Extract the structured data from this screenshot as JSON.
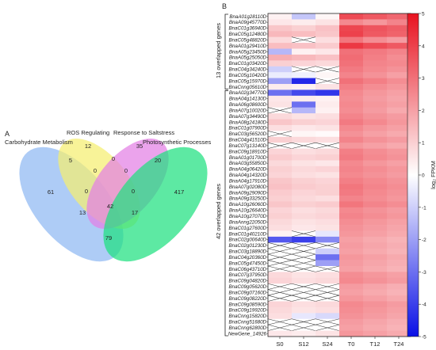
{
  "panel_a": {
    "letter": "A",
    "sets": [
      {
        "name": "Carbohydrate Metabolism",
        "color": "#8fb8f2"
      },
      {
        "name": "ROS Regulating",
        "color": "#f5ee70"
      },
      {
        "name": "Response to Saltstress",
        "color": "#e37fe5"
      },
      {
        "name": "Photosynthetic Processes",
        "color": "#1ee07f"
      }
    ]
  },
  "panel_b": {
    "letter": "B",
    "group_labels": [
      "13 overlapped genes",
      "42 overlapped genes"
    ],
    "colorbar": {
      "label": "log₂ FPKM",
      "ticks": [
        "5",
        "4",
        "3",
        "2",
        "1",
        "0",
        "-1",
        "-2",
        "-3",
        "-4",
        "-5"
      ],
      "high_color": "#e8121f",
      "mid_color": "#ffffff",
      "low_color": "#0a10e6"
    }
  },
  "chart_data": [
    {
      "type": "venn",
      "sets": [
        "Carbohydrate Metabolism",
        "ROS Regulating",
        "Response to Saltstress",
        "Photosynthetic Processes"
      ],
      "regions": [
        {
          "sets": [
            "Carbohydrate Metabolism"
          ],
          "value": 61
        },
        {
          "sets": [
            "ROS Regulating"
          ],
          "value": 12
        },
        {
          "sets": [
            "Response to Saltstress"
          ],
          "value": 35
        },
        {
          "sets": [
            "Photosynthetic Processes"
          ],
          "value": 417
        },
        {
          "sets": [
            "Carbohydrate Metabolism",
            "ROS Regulating"
          ],
          "value": 5
        },
        {
          "sets": [
            "ROS Regulating",
            "Response to Saltstress"
          ],
          "value": 0
        },
        {
          "sets": [
            "Response to Saltstress",
            "Photosynthetic Processes"
          ],
          "value": 20
        },
        {
          "sets": [
            "Carbohydrate Metabolism",
            "Photosynthetic Processes"
          ],
          "value": 79
        },
        {
          "sets": [
            "Carbohydrate Metabolism",
            "Response to Saltstress"
          ],
          "value": 0
        },
        {
          "sets": [
            "ROS Regulating",
            "Photosynthetic Processes"
          ],
          "value": 0
        },
        {
          "sets": [
            "Carbohydrate Metabolism",
            "ROS Regulating",
            "Response to Saltstress"
          ],
          "value": 0
        },
        {
          "sets": [
            "ROS Regulating",
            "Response to Saltstress",
            "Photosynthetic Processes"
          ],
          "value": 0
        },
        {
          "sets": [
            "Carbohydrate Metabolism",
            "ROS Regulating",
            "Photosynthetic Processes"
          ],
          "value": 13
        },
        {
          "sets": [
            "Carbohydrate Metabolism",
            "Response to Saltstress",
            "Photosynthetic Processes"
          ],
          "value": 17
        },
        {
          "sets": [
            "Carbohydrate Metabolism",
            "ROS Regulating",
            "Response to Saltstress",
            "Photosynthetic Processes"
          ],
          "value": 42
        }
      ]
    },
    {
      "type": "heatmap",
      "columns": [
        "S0",
        "S12",
        "S24",
        "T0",
        "T12",
        "T24"
      ],
      "zlim": [
        -5,
        5
      ],
      "missing": "x",
      "rows": [
        {
          "gene": "BnaA01g28110D",
          "values": [
            0.3,
            -1.2,
            0.2,
            3.8,
            3.5,
            3.2
          ]
        },
        {
          "gene": "BnaA09g45770D",
          "values": [
            0.5,
            0.4,
            0.6,
            2.5,
            2.2,
            2.6
          ]
        },
        {
          "gene": "BnaC01g36940D",
          "values": [
            1.2,
            1.0,
            1.3,
            3.9,
            3.6,
            3.4
          ]
        },
        {
          "gene": "BnaC05g12480D",
          "values": [
            1.5,
            1.4,
            1.2,
            4.0,
            3.5,
            3.3
          ]
        },
        {
          "gene": "BnaC05g48820D",
          "values": [
            0.8,
            "x",
            0.7,
            2.9,
            2.4,
            2.1
          ]
        },
        {
          "gene": "BnaA01g29410D",
          "values": [
            1.4,
            1.3,
            1.1,
            4.2,
            3.8,
            3.5
          ]
        },
        {
          "gene": "BnaA05g23450D",
          "values": [
            -1.5,
            0.3,
            0.5,
            3.0,
            2.8,
            2.6
          ]
        },
        {
          "gene": "BnaA05g25050D",
          "values": [
            1.7,
            1.5,
            1.3,
            3.1,
            2.7,
            2.4
          ]
        },
        {
          "gene": "BnaC01g03420D",
          "values": [
            1.0,
            0.9,
            0.8,
            3.0,
            2.6,
            2.5
          ]
        },
        {
          "gene": "BnaC04g34240D",
          "values": [
            -1.0,
            "x",
            "x",
            2.8,
            2.5,
            2.3
          ]
        },
        {
          "gene": "BnaC05g10420D",
          "values": [
            -0.4,
            -0.3,
            0.2,
            2.6,
            2.3,
            2.0
          ]
        },
        {
          "gene": "BnaC05g15970D",
          "values": [
            -2.0,
            -4.5,
            "x",
            3.0,
            2.7,
            2.4
          ]
        },
        {
          "gene": "BnaCnng05610D",
          "values": [
            0.4,
            0.3,
            0.6,
            2.7,
            2.4,
            2.2
          ]
        },
        {
          "gene": "BnaA02g34770D",
          "values": [
            -3.0,
            -3.8,
            -4.2,
            2.5,
            2.2,
            2.0
          ]
        },
        {
          "gene": "BnaA04g14130D",
          "values": [
            0.5,
            0.4,
            0.3,
            2.4,
            2.1,
            1.9
          ]
        },
        {
          "gene": "BnaA06g08600D",
          "values": [
            0.6,
            -3.0,
            0.4,
            2.5,
            2.2,
            2.0
          ]
        },
        {
          "gene": "BnaA07g10020D",
          "values": [
            "x",
            -1.5,
            0.3,
            2.4,
            2.1,
            1.8
          ]
        },
        {
          "gene": "BnaA07g34490D",
          "values": [
            0.8,
            0.6,
            0.7,
            2.6,
            2.3,
            2.1
          ]
        },
        {
          "gene": "BnaA08g24180D",
          "values": [
            1.2,
            1.0,
            0.9,
            2.8,
            2.5,
            2.2
          ]
        },
        {
          "gene": "BnaC01g07900D",
          "values": [
            0.7,
            0.5,
            0.6,
            2.5,
            2.2,
            2.0
          ]
        },
        {
          "gene": "BnaC03g56520D",
          "values": [
            "x",
            0.2,
            0.1,
            2.3,
            2.0,
            1.8
          ]
        },
        {
          "gene": "BnaC04g41510D",
          "values": [
            1.0,
            0.8,
            0.7,
            2.6,
            2.3,
            2.1
          ]
        },
        {
          "gene": "BnaC07g13140D",
          "values": [
            "x",
            "x",
            "x",
            2.2,
            2.0,
            1.8
          ]
        },
        {
          "gene": "BnaC09g18910D",
          "values": [
            0.9,
            0.7,
            0.8,
            2.7,
            2.4,
            2.2
          ]
        },
        {
          "gene": "BnaA01g01700D",
          "values": [
            1.1,
            0.9,
            1.0,
            2.8,
            2.5,
            2.3
          ]
        },
        {
          "gene": "BnaA03g55850D",
          "values": [
            0.8,
            0.6,
            0.5,
            2.5,
            2.2,
            2.0
          ]
        },
        {
          "gene": "BnaA04g06420D",
          "values": [
            1.0,
            0.8,
            0.9,
            2.6,
            2.4,
            2.2
          ]
        },
        {
          "gene": "BnaA04g14320D",
          "values": [
            0.9,
            0.7,
            0.6,
            2.5,
            2.3,
            2.1
          ]
        },
        {
          "gene": "BnaA04g17910D",
          "values": [
            1.2,
            1.0,
            0.9,
            2.7,
            2.5,
            2.3
          ]
        },
        {
          "gene": "BnaA07g02080D",
          "values": [
            1.3,
            1.1,
            1.0,
            2.9,
            2.6,
            2.4
          ]
        },
        {
          "gene": "BnaA09g29090D",
          "values": [
            1.1,
            0.9,
            1.0,
            2.8,
            2.5,
            2.3
          ]
        },
        {
          "gene": "BnaA09g33250D",
          "values": [
            1.0,
            0.8,
            0.7,
            2.6,
            2.4,
            2.2
          ]
        },
        {
          "gene": "BnaA10g26060D",
          "values": [
            1.2,
            1.0,
            1.1,
            2.9,
            2.6,
            2.4
          ]
        },
        {
          "gene": "BnaA10g26640D",
          "values": [
            0.9,
            0.7,
            0.8,
            2.5,
            2.3,
            2.1
          ]
        },
        {
          "gene": "BnaA10g27070D",
          "values": [
            1.0,
            0.8,
            0.9,
            2.6,
            2.4,
            2.2
          ]
        },
        {
          "gene": "BnaAnng22050D",
          "values": [
            0.8,
            0.6,
            0.7,
            2.4,
            2.2,
            2.0
          ]
        },
        {
          "gene": "BnaC01g27600D",
          "values": [
            0.7,
            0.5,
            0.6,
            2.3,
            2.1,
            1.9
          ]
        },
        {
          "gene": "BnaC01g40210D",
          "values": [
            0.3,
            "x",
            -0.5,
            2.2,
            2.0,
            1.8
          ]
        },
        {
          "gene": "BnaC02g00640D",
          "values": [
            -3.5,
            -4.0,
            -2.5,
            2.0,
            1.8,
            1.6
          ]
        },
        {
          "gene": "BnaC02g01230D",
          "values": [
            "x",
            "x",
            "x",
            2.1,
            1.9,
            1.7
          ]
        },
        {
          "gene": "BnaC03g18890D",
          "values": [
            "x",
            "x",
            -1.0,
            2.0,
            1.8,
            1.6
          ]
        },
        {
          "gene": "BnaC04g20360D",
          "values": [
            "x",
            "x",
            -3.0,
            2.2,
            2.0,
            1.8
          ]
        },
        {
          "gene": "BnaC05g47450D",
          "values": [
            "x",
            "x",
            -2.0,
            2.1,
            1.9,
            1.7
          ]
        },
        {
          "gene": "BnaC06g43710D",
          "values": [
            "x",
            "x",
            "x",
            2.0,
            1.8,
            1.6
          ]
        },
        {
          "gene": "BnaC07g37950D",
          "values": [
            0.8,
            0.6,
            0.7,
            2.4,
            2.2,
            2.0
          ]
        },
        {
          "gene": "BnaC09g04820D",
          "values": [
            0.9,
            0.7,
            0.8,
            2.5,
            2.3,
            2.1
          ]
        },
        {
          "gene": "BnaC09g05620D",
          "values": [
            "x",
            "x",
            "x",
            2.1,
            1.9,
            1.7
          ]
        },
        {
          "gene": "BnaC09g07160D",
          "values": [
            "x",
            "x",
            "x",
            2.0,
            1.8,
            1.6
          ]
        },
        {
          "gene": "BnaC09g08220D",
          "values": [
            "x",
            "x",
            "x",
            2.2,
            2.0,
            1.8
          ]
        },
        {
          "gene": "BnaC09g08590D",
          "values": [
            0.9,
            0.7,
            0.8,
            2.5,
            2.3,
            2.1
          ]
        },
        {
          "gene": "BnaC09g19920D",
          "values": [
            0.8,
            0.6,
            0.7,
            2.4,
            2.2,
            2.0
          ]
        },
        {
          "gene": "BnaCnng15820D",
          "values": [
            0.7,
            -0.5,
            -0.8,
            2.3,
            2.1,
            1.9
          ]
        },
        {
          "gene": "BnaCnng51680D",
          "values": [
            "x",
            "x",
            "x",
            2.1,
            1.9,
            1.7
          ]
        },
        {
          "gene": "BnaCnng62800D",
          "values": [
            "x",
            "x",
            "x",
            2.0,
            1.8,
            1.6
          ]
        },
        {
          "gene": "NewGene_14926",
          "values": [
            0.5,
            0.4,
            0.6,
            2.2,
            2.0,
            1.8
          ]
        }
      ],
      "groups": [
        {
          "label": "13 overlapped genes",
          "rows": 13
        },
        {
          "label": "42 overlapped genes",
          "rows": 42
        }
      ]
    }
  ]
}
